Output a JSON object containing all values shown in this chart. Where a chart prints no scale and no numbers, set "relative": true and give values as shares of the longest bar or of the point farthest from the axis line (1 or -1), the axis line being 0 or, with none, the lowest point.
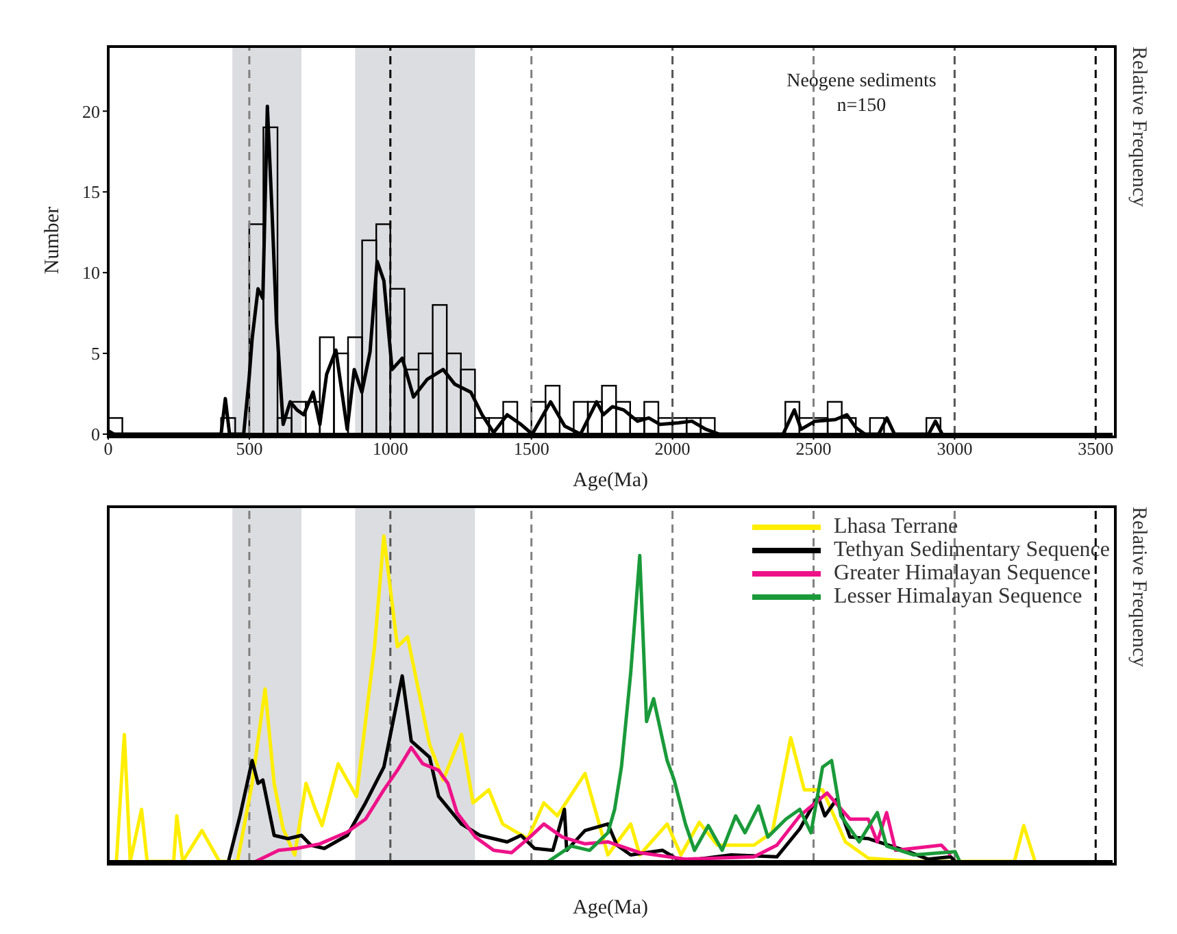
{
  "chart_data": [
    {
      "type": "histogram",
      "ylabel": "Number",
      "xlabel": "Age(Ma)",
      "y2label": "Relative Frequency",
      "annotations": [
        "Neogene sediments",
        "n=150"
      ],
      "bins": [
        0,
        50,
        100,
        150,
        200,
        250,
        300,
        350,
        400,
        450,
        500,
        550,
        600,
        650,
        700,
        750,
        800,
        850,
        900,
        950,
        1000,
        1050,
        1100,
        1150,
        1200,
        1250,
        1300,
        1350,
        1400,
        1450,
        1500,
        1550,
        1600,
        1650,
        1700,
        1750,
        1800,
        1850,
        1900,
        1950,
        2000,
        2050,
        2100,
        2150,
        2200,
        2250,
        2300,
        2350,
        2400,
        2450,
        2500,
        2550,
        2600,
        2650,
        2700,
        2750,
        2800,
        2850,
        2900,
        2950
      ],
      "values": [
        1,
        0,
        0,
        0,
        0,
        0,
        0,
        0,
        1,
        0,
        13,
        19,
        1,
        2,
        2,
        6,
        5,
        6,
        12,
        13,
        9,
        4,
        5,
        8,
        5,
        4,
        1,
        1,
        2,
        0,
        2,
        3,
        0,
        2,
        2,
        3,
        2,
        1,
        2,
        1,
        1,
        1,
        1,
        0,
        0,
        0,
        0,
        0,
        2,
        1,
        1,
        2,
        1,
        0,
        1,
        0,
        0,
        0,
        1
      ],
      "color": "#000000",
      "series": [
        {
          "type": "line",
          "color": "#000000",
          "x": [
            0,
            20,
            400,
            415,
            430,
            480,
            499,
            510,
            531,
            548,
            564,
            580,
            596,
            620,
            645,
            669,
            693,
            726,
            750,
            774,
            807,
            847,
            872,
            899,
            928,
            953,
            977,
            1006,
            1042,
            1082,
            1131,
            1187,
            1228,
            1285,
            1325,
            1366,
            1414,
            1463,
            1503,
            1568,
            1618,
            1674,
            1731,
            1755,
            1787,
            1827,
            1876,
            1916,
            1956,
            2021,
            2069,
            2118,
            2166,
            2392,
            2432,
            2456,
            2505,
            2577,
            2618,
            2650,
            2682,
            2731,
            2760,
            2787,
            2908,
            2932,
            2956
          ],
          "values": [
            0.2,
            0,
            0,
            2.2,
            0,
            0,
            3.4,
            5.9,
            9,
            8.4,
            20.3,
            14,
            7,
            0.6,
            2,
            1.5,
            1.2,
            2.6,
            0.6,
            3.7,
            5.2,
            0.3,
            4,
            2.6,
            5.1,
            10.7,
            9.5,
            4,
            4.7,
            2.3,
            3.4,
            4,
            3.1,
            2.6,
            1.2,
            0.1,
            1.2,
            0.6,
            0,
            2,
            0.5,
            0,
            2,
            1.2,
            1.7,
            1.5,
            0.8,
            1,
            0.6,
            0.7,
            0.8,
            0.3,
            0,
            0,
            1.5,
            0.3,
            0.8,
            0.9,
            1.2,
            0.4,
            0,
            0,
            1,
            0,
            0,
            0.8,
            0
          ]
        }
      ],
      "xlim": [
        0,
        3560
      ],
      "xticks": [
        0,
        500,
        1000,
        1500,
        2000,
        2500,
        3000,
        3500
      ],
      "ylim": [
        0,
        24
      ],
      "yticks": [
        0,
        5,
        10,
        15,
        20
      ],
      "bands": [
        {
          "axis": "x",
          "from": 440,
          "to": 685,
          "color": "#dcdde0"
        },
        {
          "axis": "x",
          "from": 875,
          "to": 1300,
          "color": "#dcdde0"
        }
      ],
      "ref_lines": [
        {
          "axis": "x",
          "value": 500,
          "color": "#808080",
          "line_style": "dashed"
        },
        {
          "axis": "x",
          "value": 1000,
          "color": "#000000",
          "line_style": "dashed"
        },
        {
          "axis": "x",
          "value": 1500,
          "color": "#808080",
          "line_style": "dashed"
        },
        {
          "axis": "x",
          "value": 2000,
          "color": "#555555",
          "line_style": "dashed"
        },
        {
          "axis": "x",
          "value": 2500,
          "color": "#808080",
          "line_style": "dashed"
        },
        {
          "axis": "x",
          "value": 3000,
          "color": "#555555",
          "line_style": "dashed"
        },
        {
          "axis": "x",
          "value": 3500,
          "color": "#000000",
          "line_style": "dashed"
        }
      ],
      "marker": "none"
    },
    {
      "type": "line",
      "relative": true,
      "xlabel": "Age(Ma)",
      "y2label": "Relative Frequency",
      "xlim": [
        0,
        3560
      ],
      "xticks": [
        0,
        500,
        1000,
        1500,
        2000,
        2500,
        3000,
        3500
      ],
      "tick_labels": false,
      "legend": "top right",
      "line_style": "solid",
      "marker": "none",
      "bands": [
        {
          "axis": "x",
          "from": 440,
          "to": 685,
          "color": "#dcdde0"
        },
        {
          "axis": "x",
          "from": 875,
          "to": 1300,
          "color": "#dcdde0"
        }
      ],
      "ref_lines": [
        {
          "axis": "x",
          "value": 500,
          "color": "#808080",
          "line_style": "dashed"
        },
        {
          "axis": "x",
          "value": 1000,
          "color": "#555555",
          "line_style": "dashed"
        },
        {
          "axis": "x",
          "value": 1500,
          "color": "#808080",
          "line_style": "dashed"
        },
        {
          "axis": "x",
          "value": 2000,
          "color": "#808080",
          "line_style": "dashed"
        },
        {
          "axis": "x",
          "value": 2500,
          "color": "#808080",
          "line_style": "dashed"
        },
        {
          "axis": "x",
          "value": 3000,
          "color": "#808080",
          "line_style": "dashed"
        },
        {
          "axis": "x",
          "value": 3500,
          "color": "#000000",
          "line_style": "dashed"
        }
      ],
      "series": [
        {
          "name": "Lhasa Terrane",
          "color": "#ffee00",
          "x": [
            29,
            57,
            78,
            118,
            138,
            232,
            243,
            264,
            332,
            394,
            458,
            510,
            556,
            588,
            620,
            661,
            701,
            734,
            758,
            815,
            880,
            944,
            977,
            1025,
            1061,
            1139,
            1187,
            1252,
            1293,
            1349,
            1398,
            1487,
            1544,
            1592,
            1690,
            1771,
            1852,
            1884,
            1981,
            2030,
            2095,
            2159,
            2289,
            2354,
            2419,
            2467,
            2532,
            2613,
            2694,
            2856,
            3212,
            3245,
            3285
          ],
          "values": [
            0,
            0.39,
            0,
            0.16,
            0,
            0,
            0.14,
            0,
            0.095,
            0,
            0,
            0.24,
            0.53,
            0.24,
            0.1,
            0.02,
            0.24,
            0.16,
            0.11,
            0.3,
            0.2,
            0.66,
            1,
            0.66,
            0.69,
            0.36,
            0.25,
            0.39,
            0.18,
            0.22,
            0.115,
            0.07,
            0.18,
            0.14,
            0.27,
            0.02,
            0.115,
            0.02,
            0.115,
            0.02,
            0.12,
            0.05,
            0.05,
            0.09,
            0.38,
            0.22,
            0.22,
            0.06,
            0.01,
            0,
            0,
            0.11,
            0
          ]
        },
        {
          "name": "Tethyan Sedimentary Sequence",
          "color": "#000000",
          "x": [
            426,
            467,
            510,
            531,
            548,
            588,
            637,
            685,
            718,
            766,
            847,
            912,
            977,
            1042,
            1074,
            1139,
            1171,
            1252,
            1317,
            1414,
            1463,
            1511,
            1576,
            1617,
            1625,
            1690,
            1771,
            1803,
            1852,
            1965,
            2030,
            2208,
            2370,
            2451,
            2516,
            2540,
            2581,
            2629,
            2694,
            2824,
            2905,
            2986,
            3002
          ],
          "values": [
            0,
            0.14,
            0.31,
            0.24,
            0.25,
            0.08,
            0.07,
            0.08,
            0.05,
            0.04,
            0.08,
            0.18,
            0.29,
            0.57,
            0.37,
            0.32,
            0.2,
            0.115,
            0.08,
            0.06,
            0.08,
            0.04,
            0.034,
            0.16,
            0.034,
            0.095,
            0.115,
            0.05,
            0.02,
            0.034,
            0,
            0.02,
            0.014,
            0.1,
            0.2,
            0.14,
            0.19,
            0.075,
            0.07,
            0.034,
            0.007,
            0.014,
            0
          ]
        },
        {
          "name": "Greater Himalayan Sequence",
          "color": "#ee1289",
          "x": [
            523,
            604,
            669,
            750,
            847,
            912,
            977,
            1025,
            1074,
            1115,
            1171,
            1204,
            1236,
            1301,
            1366,
            1430,
            1495,
            1544,
            1609,
            1690,
            1771,
            1884,
            2046,
            2289,
            2370,
            2451,
            2548,
            2629,
            2694,
            2726,
            2759,
            2791,
            2953,
            2986
          ],
          "values": [
            0,
            0.034,
            0.04,
            0.054,
            0.09,
            0.13,
            0.22,
            0.28,
            0.35,
            0.3,
            0.28,
            0.24,
            0.15,
            0.075,
            0.034,
            0.027,
            0.075,
            0.115,
            0.075,
            0.054,
            0.06,
            0.027,
            0.007,
            0.014,
            0.05,
            0.14,
            0.21,
            0.13,
            0.13,
            0.06,
            0.15,
            0.034,
            0.05,
            0.02
          ]
        },
        {
          "name": "Lesser Himalayan Sequence",
          "color": "#1a9a3a",
          "x": [
            1560,
            1641,
            1706,
            1771,
            1795,
            1819,
            1852,
            1884,
            1908,
            1933,
            1981,
            2006,
            2046,
            2078,
            2127,
            2176,
            2224,
            2257,
            2305,
            2338,
            2402,
            2451,
            2491,
            2532,
            2564,
            2597,
            2662,
            2726,
            2759,
            2856,
            3002,
            3018
          ],
          "values": [
            0,
            0.047,
            0.034,
            0.088,
            0.16,
            0.29,
            0.58,
            0.94,
            0.43,
            0.5,
            0.31,
            0.25,
            0.115,
            0.034,
            0.11,
            0.034,
            0.14,
            0.088,
            0.17,
            0.075,
            0.13,
            0.16,
            0.088,
            0.29,
            0.31,
            0.14,
            0.06,
            0.15,
            0.047,
            0.02,
            0.03,
            0
          ]
        }
      ]
    }
  ]
}
